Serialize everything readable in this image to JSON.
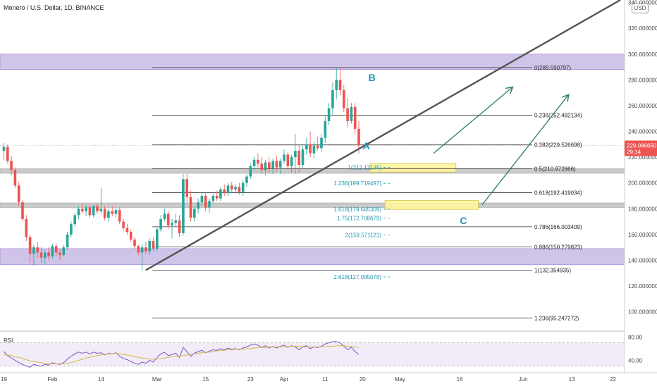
{
  "header": {
    "title": "Monero / U.S. Dollar, 1D, BINANCE",
    "currency_button": "USD"
  },
  "colors": {
    "up": "#26a69a",
    "down": "#ef5350",
    "zone_purple": "#b39ddb",
    "zone_gray": "#bdbdbd",
    "zone_yellow": "#fff59d",
    "fib_blue": "#2196b3",
    "trend": "#555555",
    "arrow": "#2e7d6b",
    "rsi_line": "#7e57c2",
    "rsi_ma": "#d4b94a",
    "price_tag": "#ef5350"
  },
  "chart_data": {
    "type": "candlestick",
    "title": "Monero / U.S. Dollar, 1D, BINANCE",
    "ylim": [
      85,
      342
    ],
    "y_ticks": [
      {
        "value": 340,
        "label": "340.000000"
      },
      {
        "value": 320,
        "label": "320.000000"
      },
      {
        "value": 300,
        "label": "300.000000"
      },
      {
        "value": 280,
        "label": "280.000000"
      },
      {
        "value": 260,
        "label": "260.000000"
      },
      {
        "value": 240,
        "label": "240.000000"
      },
      {
        "value": 220,
        "label": "220.000000"
      },
      {
        "value": 200,
        "label": "200.000000"
      },
      {
        "value": 180,
        "label": "180.000000"
      },
      {
        "value": 160,
        "label": "160.000000"
      },
      {
        "value": 140,
        "label": "140.000000"
      },
      {
        "value": 120,
        "label": "120.000000"
      },
      {
        "value": 100,
        "label": "100.000000"
      }
    ],
    "x_ticks": [
      {
        "day": 0,
        "label": "19"
      },
      {
        "day": 13,
        "label": "Feb"
      },
      {
        "day": 26,
        "label": "14"
      },
      {
        "day": 41,
        "label": "Mar"
      },
      {
        "day": 54,
        "label": "15"
      },
      {
        "day": 66,
        "label": "23"
      },
      {
        "day": 75,
        "label": "Apr"
      },
      {
        "day": 86,
        "label": "11"
      },
      {
        "day": 96,
        "label": "20"
      },
      {
        "day": 106,
        "label": "May"
      },
      {
        "day": 122,
        "label": "16"
      },
      {
        "day": 139,
        "label": "Jun"
      },
      {
        "day": 152,
        "label": "13"
      },
      {
        "day": 163,
        "label": "22"
      }
    ],
    "current_price": {
      "value": 229.08665,
      "label": "229.086650",
      "countdown": "29:34"
    },
    "candles": [
      {
        "o": 225,
        "h": 231,
        "l": 218,
        "c": 228
      },
      {
        "o": 228,
        "h": 230,
        "l": 215,
        "c": 217
      },
      {
        "o": 217,
        "h": 221,
        "l": 206,
        "c": 210
      },
      {
        "o": 210,
        "h": 212,
        "l": 196,
        "c": 198
      },
      {
        "o": 198,
        "h": 201,
        "l": 182,
        "c": 185
      },
      {
        "o": 185,
        "h": 187,
        "l": 170,
        "c": 172
      },
      {
        "o": 172,
        "h": 175,
        "l": 155,
        "c": 158
      },
      {
        "o": 158,
        "h": 160,
        "l": 138,
        "c": 145
      },
      {
        "o": 145,
        "h": 152,
        "l": 136,
        "c": 150
      },
      {
        "o": 150,
        "h": 154,
        "l": 142,
        "c": 146
      },
      {
        "o": 146,
        "h": 150,
        "l": 138,
        "c": 142
      },
      {
        "o": 142,
        "h": 148,
        "l": 137,
        "c": 146
      },
      {
        "o": 146,
        "h": 150,
        "l": 140,
        "c": 143
      },
      {
        "o": 143,
        "h": 153,
        "l": 141,
        "c": 151
      },
      {
        "o": 151,
        "h": 153,
        "l": 143,
        "c": 146
      },
      {
        "o": 146,
        "h": 149,
        "l": 140,
        "c": 144
      },
      {
        "o": 144,
        "h": 152,
        "l": 143,
        "c": 150
      },
      {
        "o": 150,
        "h": 162,
        "l": 148,
        "c": 160
      },
      {
        "o": 160,
        "h": 170,
        "l": 158,
        "c": 168
      },
      {
        "o": 168,
        "h": 177,
        "l": 166,
        "c": 175
      },
      {
        "o": 175,
        "h": 182,
        "l": 172,
        "c": 180
      },
      {
        "o": 180,
        "h": 184,
        "l": 176,
        "c": 178
      },
      {
        "o": 178,
        "h": 183,
        "l": 174,
        "c": 181
      },
      {
        "o": 181,
        "h": 183,
        "l": 173,
        "c": 175
      },
      {
        "o": 175,
        "h": 183,
        "l": 173,
        "c": 182
      },
      {
        "o": 182,
        "h": 184,
        "l": 176,
        "c": 178
      },
      {
        "o": 178,
        "h": 196,
        "l": 176,
        "c": 180
      },
      {
        "o": 180,
        "h": 182,
        "l": 171,
        "c": 173
      },
      {
        "o": 173,
        "h": 180,
        "l": 170,
        "c": 178
      },
      {
        "o": 178,
        "h": 182,
        "l": 174,
        "c": 176
      },
      {
        "o": 176,
        "h": 181,
        "l": 173,
        "c": 179
      },
      {
        "o": 179,
        "h": 181,
        "l": 168,
        "c": 170
      },
      {
        "o": 170,
        "h": 172,
        "l": 163,
        "c": 165
      },
      {
        "o": 165,
        "h": 168,
        "l": 160,
        "c": 162
      },
      {
        "o": 162,
        "h": 164,
        "l": 154,
        "c": 156
      },
      {
        "o": 156,
        "h": 158,
        "l": 149,
        "c": 151
      },
      {
        "o": 151,
        "h": 152,
        "l": 144,
        "c": 146
      },
      {
        "o": 146,
        "h": 153,
        "l": 132,
        "c": 150
      },
      {
        "o": 150,
        "h": 154,
        "l": 145,
        "c": 147
      },
      {
        "o": 147,
        "h": 157,
        "l": 144,
        "c": 155
      },
      {
        "o": 155,
        "h": 158,
        "l": 147,
        "c": 149
      },
      {
        "o": 149,
        "h": 166,
        "l": 147,
        "c": 164
      },
      {
        "o": 164,
        "h": 175,
        "l": 162,
        "c": 172
      },
      {
        "o": 172,
        "h": 180,
        "l": 170,
        "c": 176
      },
      {
        "o": 176,
        "h": 178,
        "l": 164,
        "c": 167
      },
      {
        "o": 167,
        "h": 172,
        "l": 157,
        "c": 169
      },
      {
        "o": 169,
        "h": 176,
        "l": 166,
        "c": 171
      },
      {
        "o": 171,
        "h": 175,
        "l": 158,
        "c": 161
      },
      {
        "o": 161,
        "h": 207,
        "l": 159,
        "c": 203
      },
      {
        "o": 203,
        "h": 207,
        "l": 185,
        "c": 189
      },
      {
        "o": 189,
        "h": 194,
        "l": 170,
        "c": 173
      },
      {
        "o": 173,
        "h": 182,
        "l": 170,
        "c": 180
      },
      {
        "o": 180,
        "h": 188,
        "l": 176,
        "c": 185
      },
      {
        "o": 185,
        "h": 193,
        "l": 182,
        "c": 190
      },
      {
        "o": 190,
        "h": 193,
        "l": 178,
        "c": 181
      },
      {
        "o": 181,
        "h": 188,
        "l": 177,
        "c": 186
      },
      {
        "o": 186,
        "h": 192,
        "l": 184,
        "c": 190
      },
      {
        "o": 190,
        "h": 194,
        "l": 186,
        "c": 188
      },
      {
        "o": 188,
        "h": 197,
        "l": 186,
        "c": 195
      },
      {
        "o": 195,
        "h": 199,
        "l": 190,
        "c": 192
      },
      {
        "o": 192,
        "h": 200,
        "l": 190,
        "c": 198
      },
      {
        "o": 198,
        "h": 201,
        "l": 193,
        "c": 195
      },
      {
        "o": 195,
        "h": 199,
        "l": 192,
        "c": 197
      },
      {
        "o": 197,
        "h": 200,
        "l": 191,
        "c": 193
      },
      {
        "o": 193,
        "h": 202,
        "l": 190,
        "c": 200
      },
      {
        "o": 200,
        "h": 207,
        "l": 197,
        "c": 205
      },
      {
        "o": 205,
        "h": 215,
        "l": 203,
        "c": 213
      },
      {
        "o": 213,
        "h": 220,
        "l": 210,
        "c": 218
      },
      {
        "o": 218,
        "h": 223,
        "l": 212,
        "c": 215
      },
      {
        "o": 215,
        "h": 220,
        "l": 207,
        "c": 210
      },
      {
        "o": 210,
        "h": 218,
        "l": 206,
        "c": 216
      },
      {
        "o": 216,
        "h": 220,
        "l": 208,
        "c": 211
      },
      {
        "o": 211,
        "h": 219,
        "l": 207,
        "c": 217
      },
      {
        "o": 217,
        "h": 221,
        "l": 209,
        "c": 212
      },
      {
        "o": 212,
        "h": 219,
        "l": 207,
        "c": 217
      },
      {
        "o": 217,
        "h": 226,
        "l": 215,
        "c": 222
      },
      {
        "o": 222,
        "h": 224,
        "l": 210,
        "c": 213
      },
      {
        "o": 213,
        "h": 222,
        "l": 208,
        "c": 220
      },
      {
        "o": 220,
        "h": 238,
        "l": 207,
        "c": 225
      },
      {
        "o": 225,
        "h": 229,
        "l": 208,
        "c": 214
      },
      {
        "o": 214,
        "h": 229,
        "l": 212,
        "c": 226
      },
      {
        "o": 226,
        "h": 235,
        "l": 222,
        "c": 230
      },
      {
        "o": 230,
        "h": 240,
        "l": 220,
        "c": 223
      },
      {
        "o": 223,
        "h": 232,
        "l": 219,
        "c": 229
      },
      {
        "o": 229,
        "h": 236,
        "l": 225,
        "c": 227
      },
      {
        "o": 227,
        "h": 238,
        "l": 224,
        "c": 235
      },
      {
        "o": 235,
        "h": 252,
        "l": 231,
        "c": 248
      },
      {
        "o": 248,
        "h": 262,
        "l": 245,
        "c": 258
      },
      {
        "o": 258,
        "h": 278,
        "l": 253,
        "c": 272
      },
      {
        "o": 272,
        "h": 290,
        "l": 265,
        "c": 280
      },
      {
        "o": 280,
        "h": 290,
        "l": 268,
        "c": 272
      },
      {
        "o": 272,
        "h": 276,
        "l": 255,
        "c": 258
      },
      {
        "o": 258,
        "h": 266,
        "l": 243,
        "c": 248
      },
      {
        "o": 248,
        "h": 262,
        "l": 246,
        "c": 259
      },
      {
        "o": 259,
        "h": 262,
        "l": 238,
        "c": 242
      },
      {
        "o": 242,
        "h": 248,
        "l": 223,
        "c": 229.09
      }
    ],
    "horizontal_zones": [
      {
        "from": 288,
        "to": 300,
        "color": "zone_purple"
      },
      {
        "from": 207.5,
        "to": 211,
        "color": "zone_gray"
      },
      {
        "from": 181,
        "to": 184.5,
        "color": "zone_gray"
      },
      {
        "from": 136.5,
        "to": 149,
        "color": "zone_purple"
      }
    ],
    "highlight_boxes": [
      {
        "day_from": 98,
        "day_to": 121,
        "from": 208.5,
        "to": 215,
        "color": "zone_yellow"
      },
      {
        "day_from": 102,
        "day_to": 127,
        "from": 179.5,
        "to": 186.5,
        "color": "zone_yellow"
      }
    ],
    "fib_levels": [
      {
        "value": 289.590797,
        "label": "0(289.590797)"
      },
      {
        "value": 252.482134,
        "label": "0.236(252.482134)"
      },
      {
        "value": 229.526698,
        "label": "0.382(229.526698)"
      },
      {
        "value": 210.972866,
        "label": "0.5(210.972866)"
      },
      {
        "value": 192.419034,
        "label": "0.618(192.419034)"
      },
      {
        "value": 166.003409,
        "label": "0.786(166.003409)"
      },
      {
        "value": 150.279823,
        "label": "0.886(150.279823)"
      },
      {
        "value": 132.354935,
        "label": "1(132.354935)"
      },
      {
        "value": 95.247272,
        "label": "1.236(95.247272)"
      }
    ],
    "extension_levels": [
      {
        "value": 212.1,
        "label": "1(212.12135)"
      },
      {
        "value": 199.719497,
        "label": "1.236(199.719497)"
      },
      {
        "value": 179.645309,
        "label": "1.618(179.645309)"
      },
      {
        "value": 172.708679,
        "label": "1.75(172.708679)"
      },
      {
        "value": 159.571121,
        "label": "2(159.571121)"
      },
      {
        "value": 127.095078,
        "label": "2.618(127.095078)"
      }
    ],
    "trendline": {
      "day_from": 38,
      "value_from": 132.35,
      "day_to": 165,
      "value_to": 342
    },
    "wave_labels": [
      {
        "text": "B",
        "day": 98.5,
        "value": 279
      },
      {
        "text": "A",
        "day": 97,
        "value": 226
      },
      {
        "text": "C",
        "day": 123,
        "value": 168
      }
    ],
    "projection_arrows": [
      {
        "day_from": 115,
        "value_from": 223,
        "day_to": 136,
        "value_to": 274
      },
      {
        "day_from": 128,
        "value_from": 183,
        "day_to": 151,
        "value_to": 268
      }
    ],
    "rsi": {
      "label": "RSI",
      "ylim": [
        20,
        90
      ],
      "ticks": [
        {
          "value": 80,
          "label": "80.00"
        },
        {
          "value": 40,
          "label": "40.00"
        }
      ],
      "band": [
        30,
        70
      ],
      "values": [
        55,
        48,
        44,
        40,
        36,
        33,
        30,
        28,
        33,
        31,
        30,
        33,
        32,
        36,
        34,
        33,
        36,
        42,
        47,
        51,
        54,
        52,
        54,
        51,
        54,
        52,
        53,
        49,
        52,
        51,
        53,
        47,
        43,
        41,
        38,
        35,
        33,
        37,
        35,
        40,
        37,
        45,
        51,
        54,
        48,
        50,
        52,
        45,
        62,
        55,
        47,
        52,
        55,
        57,
        53,
        56,
        58,
        57,
        60,
        58,
        61,
        59,
        60,
        58,
        61,
        63,
        66,
        68,
        66,
        62,
        65,
        61,
        64,
        61,
        64,
        66,
        62,
        65,
        63,
        58,
        63,
        65,
        60,
        63,
        62,
        64,
        68,
        70,
        72,
        72,
        70,
        64,
        58,
        62,
        55,
        50
      ],
      "ma_values": [
        50,
        49,
        48,
        46,
        45,
        43,
        41,
        39,
        38,
        37,
        36,
        35,
        34,
        34,
        34,
        34,
        34,
        35,
        36,
        38,
        40,
        42,
        44,
        45,
        47,
        48,
        49,
        50,
        51,
        51,
        52,
        51,
        50,
        49,
        48,
        46,
        45,
        44,
        43,
        42,
        42,
        42,
        43,
        44,
        45,
        46,
        47,
        47,
        48,
        49,
        50,
        51,
        52,
        53,
        54,
        54,
        55,
        56,
        57,
        57,
        58,
        58,
        59,
        59,
        59,
        60,
        60,
        61,
        62,
        62,
        62,
        63,
        63,
        63,
        63,
        63,
        63,
        64,
        64,
        64,
        63,
        63,
        63,
        63,
        63,
        63,
        63,
        64,
        64,
        65,
        65,
        65,
        64,
        64,
        63,
        62
      ]
    }
  }
}
